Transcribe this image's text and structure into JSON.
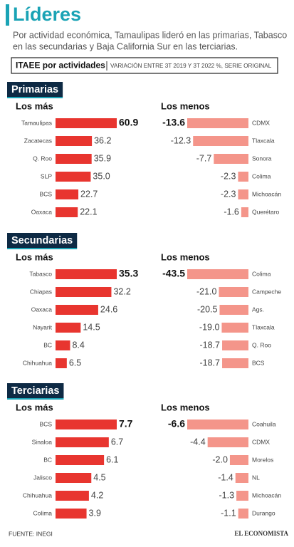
{
  "title": "Líderes",
  "subtitle": [
    "Por actividad económica, Tamaulipas lideró en las primarias, Tabasco",
    "en las secundarias y Baja California Sur en las terciarias."
  ],
  "label": "ITAEE por actividades",
  "note": "VARIACIÓN ENTRE 3T 2019 Y 3T 2022 %, SERIE ORIGINAL",
  "sections": [
    "Primarias",
    "Secundarias",
    "Terciarias"
  ],
  "source": "FUENTE: INEGI",
  "brand": "EL ECONOMISTA",
  "chart_data": [
    {
      "type": "bar",
      "title": "Los más",
      "color": "#e8352f",
      "categories": [
        "Tamaulipas",
        "Zacatecas",
        "Q. Roo",
        "SLP",
        "BCS",
        "Oaxaca"
      ],
      "values": [
        60.9,
        36.2,
        35.9,
        35.0,
        22.7,
        22.1
      ],
      "value_labels": [
        "60.9",
        "36.2",
        "35.9",
        "35.0",
        "22.7",
        "22.1"
      ]
    },
    {
      "type": "bar",
      "title": "Los menos",
      "color": "#f4958a",
      "categories": [
        "CDMX",
        "Tlaxcala",
        "Sonora",
        "Colima",
        "Michoacán",
        "Querétaro"
      ],
      "values": [
        -13.6,
        -12.3,
        -7.7,
        -2.3,
        -2.3,
        -1.6
      ]
    },
    {
      "type": "bar",
      "title": "Los más",
      "color": "#e8352f",
      "categories": [
        "Tabasco",
        "Chiapas",
        "Oaxaca",
        "Nayarit",
        "BC",
        "Chihuahua"
      ],
      "values": [
        35.3,
        32.2,
        24.6,
        14.5,
        8.4,
        6.5
      ]
    },
    {
      "type": "bar",
      "title": "Los menos",
      "color": "#f4958a",
      "categories": [
        "Colima",
        "Campeche",
        "Ags.",
        "Tlaxcala",
        "Q. Roo",
        "BCS"
      ],
      "values": [
        -43.5,
        -21.0,
        -20.5,
        -19.0,
        -18.7,
        -18.7
      ],
      "value_labels": [
        "-43.5",
        "-21.0",
        "-20.5",
        "-19.0",
        "-18.7",
        "-18.7"
      ]
    },
    {
      "type": "bar",
      "title": "Los más",
      "color": "#e8352f",
      "categories": [
        "BCS",
        "Sinaloa",
        "BC",
        "Jalisco",
        "Chihuahua",
        "Colima"
      ],
      "values": [
        7.7,
        6.7,
        6.1,
        4.5,
        4.2,
        3.9
      ]
    },
    {
      "type": "bar",
      "title": "Los menos",
      "color": "#f4958a",
      "categories": [
        "Coahuila",
        "CDMX",
        "Morelos",
        "NL",
        "Michoacán",
        "Durango"
      ],
      "values": [
        -6.6,
        -4.4,
        -2.0,
        -1.4,
        -1.3,
        -1.1
      ],
      "value_labels": [
        "-6.6",
        "-4.4",
        "-2.0",
        "-1.4",
        "-1.3",
        "-1.1"
      ]
    }
  ]
}
